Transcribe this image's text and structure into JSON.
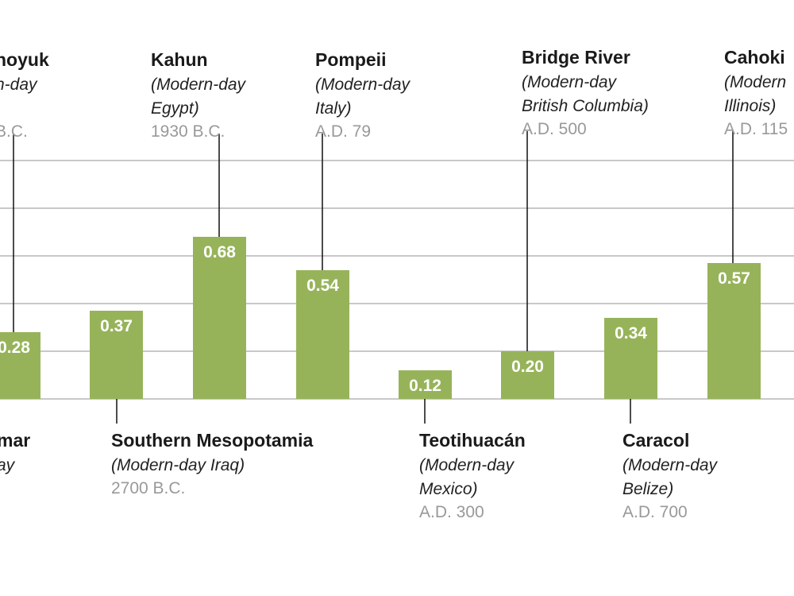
{
  "chart_data": {
    "type": "bar",
    "categories": [
      "hoyuk",
      "mar",
      "Southern Mesopotamia",
      "Kahun",
      "Pompeii",
      "Teotihuacán",
      "Bridge River",
      "Caracol",
      "Cahoki"
    ],
    "values": [
      null,
      0.28,
      0.37,
      0.68,
      0.54,
      0.12,
      0.2,
      0.34,
      0.57
    ],
    "value_labels": [
      "",
      "0.28",
      "0.37",
      "0.68",
      "0.54",
      "0.12",
      "0.20",
      "0.34",
      "0.57"
    ],
    "ylim": [
      0,
      1.0
    ],
    "grid": true,
    "bar_color": "#97b35a",
    "title": "",
    "xlabel": "",
    "ylabel": "",
    "labels": [
      {
        "name": "hoyuk",
        "sub": [
          "n-day",
          ")"
        ],
        "date": "B.C.",
        "pos": "top"
      },
      {
        "name": "mar",
        "sub": [
          "ay"
        ],
        "date": "",
        "pos": "bottom"
      },
      {
        "name": "Southern Mesopotamia",
        "sub": [
          "(Modern-day Iraq)"
        ],
        "date": "2700 B.C.",
        "pos": "bottom"
      },
      {
        "name": "Kahun",
        "sub": [
          "(Modern-day",
          "Egypt)"
        ],
        "date": "1930 B.C.",
        "pos": "top"
      },
      {
        "name": "Pompeii",
        "sub": [
          "(Modern-day",
          "Italy)"
        ],
        "date": "A.D. 79",
        "pos": "top"
      },
      {
        "name": "Teotihuacán",
        "sub": [
          "(Modern-day",
          "Mexico)"
        ],
        "date": "A.D. 300",
        "pos": "bottom"
      },
      {
        "name": "Bridge River",
        "sub": [
          "(Modern-day",
          "British Columbia)"
        ],
        "date": "A.D. 500",
        "pos": "top"
      },
      {
        "name": "Caracol",
        "sub": [
          "(Modern-day",
          "Belize)"
        ],
        "date": "A.D. 700",
        "pos": "bottom"
      },
      {
        "name": "Cahoki",
        "sub": [
          "(Modern",
          "Illinois)"
        ],
        "date": "A.D. 115",
        "pos": "top"
      }
    ]
  }
}
